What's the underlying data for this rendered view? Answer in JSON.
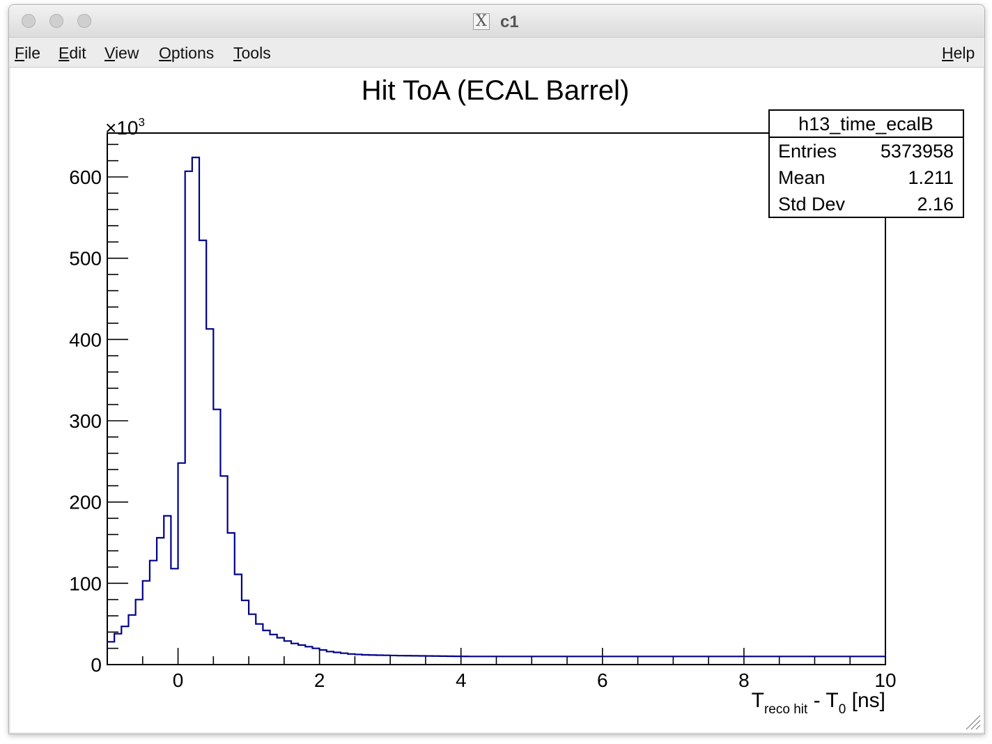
{
  "window": {
    "title": "c1",
    "x_logo": "X"
  },
  "menu": {
    "file": {
      "accel": "F",
      "rest": "ile"
    },
    "edit": {
      "accel": "E",
      "rest": "dit"
    },
    "view": {
      "accel": "V",
      "rest": "iew"
    },
    "options": {
      "accel": "O",
      "rest": "ptions"
    },
    "tools": {
      "accel": "T",
      "rest": "ools"
    },
    "help": {
      "accel": "H",
      "rest": "elp"
    }
  },
  "colors": {
    "line": "#00008b",
    "frame": "#000000",
    "canvas": "#ffffff"
  },
  "stats": {
    "name": "h13_time_ecalB",
    "rows": [
      {
        "label": "Entries",
        "value": "5373958"
      },
      {
        "label": "Mean",
        "value": "1.211"
      },
      {
        "label": "Std Dev",
        "value": "2.16"
      }
    ]
  },
  "chart_data": {
    "type": "histogram",
    "title": "Hit ToA (ECAL Barrel)",
    "xlabel": {
      "main": "T",
      "sub1": "reco hit",
      "mid": " - T",
      "sub2": "0",
      "unit": " [ns]"
    },
    "ylabel": "",
    "y_multiplier": {
      "base": "×10",
      "exp": "3"
    },
    "xlim": [
      -1,
      10
    ],
    "ylim": [
      0,
      654
    ],
    "x_ticks": [
      0,
      2,
      4,
      6,
      8,
      10
    ],
    "y_ticks": [
      0,
      100,
      200,
      300,
      400,
      500,
      600
    ],
    "bin_width": 0.1,
    "bin_start": -1.0,
    "values": [
      28,
      38,
      47,
      61,
      80,
      103,
      128,
      156,
      183,
      118,
      248,
      607,
      624,
      522,
      413,
      314,
      232,
      162,
      111,
      79,
      62,
      50,
      42,
      37,
      33,
      29,
      26,
      24,
      22,
      20,
      18,
      16,
      15,
      14,
      13,
      12.5,
      12,
      11.8,
      11.6,
      11.4,
      11.2,
      11,
      10.9,
      10.8,
      10.7,
      10.6,
      10.5,
      10.4,
      10.3,
      10.2,
      10.1,
      10,
      10,
      10,
      10,
      10,
      10,
      10,
      10,
      10,
      10,
      10,
      10,
      10,
      10,
      10,
      10,
      10,
      10,
      10,
      10,
      10,
      10,
      10,
      10,
      10,
      10,
      10,
      10,
      10,
      10,
      10,
      10,
      10,
      10,
      10,
      10,
      10,
      10,
      10,
      10,
      10,
      10,
      10,
      10,
      10,
      10,
      10,
      10,
      10,
      10,
      10,
      10,
      10,
      10,
      10,
      10,
      10,
      10,
      10
    ]
  }
}
